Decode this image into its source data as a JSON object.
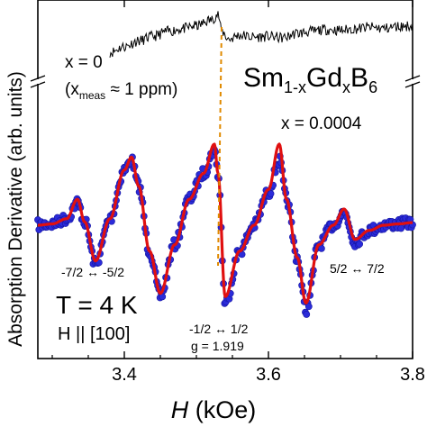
{
  "chart_data": {
    "type": "scatter",
    "xlabel_var": "H",
    "xlabel_unit": "(kOe)",
    "ylabel": "Absorption Derivative (arb. units)",
    "xlim": [
      3.28,
      3.8
    ],
    "x_ticks": [
      "3.4",
      "3.6",
      "3.8"
    ],
    "x_tick_values": [
      3.4,
      3.6,
      3.8
    ],
    "title_formula": {
      "base": "Sm",
      "sub1": "1-x",
      "mid": "Gd",
      "sub2": "x",
      "end": "B",
      "sub3": "6"
    },
    "upper_trace": {
      "label": "x = 0",
      "note": "(x",
      "note_sub": "meas",
      "note_rest": " ≈ 1 ppm)"
    },
    "lower_trace": {
      "label": "x = 0.0004"
    },
    "annotations": {
      "t1": "-7/2 ↔ -5/2",
      "t2": "-1/2 ↔ 1/2",
      "g": "g = 1.919",
      "t3": "5/2 ↔ 7/2",
      "temperature": "T = 4 K",
      "field": "H || [100]"
    },
    "marker_field": 3.535,
    "series": [
      {
        "name": "data",
        "style": "blue circles",
        "x": [
          3.28,
          3.3,
          3.32,
          3.335,
          3.345,
          3.36,
          3.38,
          3.4,
          3.41,
          3.42,
          3.435,
          3.45,
          3.47,
          3.49,
          3.51,
          3.525,
          3.53,
          3.54,
          3.56,
          3.58,
          3.6,
          3.615,
          3.625,
          3.64,
          3.652,
          3.67,
          3.69,
          3.705,
          3.72,
          3.74,
          3.76,
          3.78,
          3.8
        ],
        "y": [
          0.0,
          0.02,
          0.1,
          0.35,
          0.05,
          -0.6,
          0.1,
          0.85,
          1.0,
          0.6,
          -0.4,
          -1.1,
          -0.3,
          0.4,
          0.8,
          1.15,
          0.8,
          -1.2,
          -0.4,
          0.0,
          0.5,
          1.0,
          0.4,
          -0.5,
          -1.3,
          -0.3,
          0.0,
          0.2,
          -0.25,
          -0.08,
          0.0,
          0.02,
          0.04
        ]
      },
      {
        "name": "fit",
        "style": "red line",
        "x": [
          3.28,
          3.3,
          3.32,
          3.335,
          3.345,
          3.36,
          3.38,
          3.4,
          3.41,
          3.42,
          3.435,
          3.45,
          3.47,
          3.49,
          3.51,
          3.525,
          3.53,
          3.54,
          3.56,
          3.58,
          3.6,
          3.615,
          3.625,
          3.64,
          3.652,
          3.67,
          3.69,
          3.705,
          3.72,
          3.74,
          3.76,
          3.78,
          3.8
        ],
        "y": [
          0.0,
          0.02,
          0.1,
          0.4,
          0.05,
          -0.55,
          0.1,
          0.85,
          1.05,
          0.6,
          -0.4,
          -1.05,
          -0.3,
          0.4,
          0.8,
          1.25,
          0.8,
          -1.1,
          -0.4,
          0.0,
          0.55,
          1.25,
          0.4,
          -0.5,
          -1.2,
          -0.3,
          0.0,
          0.25,
          -0.22,
          -0.08,
          0.0,
          0.02,
          0.04
        ]
      }
    ],
    "upper_series": {
      "x": [
        3.38,
        3.4,
        3.42,
        3.44,
        3.46,
        3.48,
        3.5,
        3.52,
        3.53,
        3.535,
        3.545,
        3.56,
        3.58,
        3.6,
        3.62,
        3.64,
        3.66,
        3.68,
        3.7,
        3.72,
        3.74,
        3.76,
        3.78,
        3.8
      ],
      "y": [
        0.0,
        0.15,
        0.3,
        0.42,
        0.55,
        0.62,
        0.7,
        0.85,
        1.0,
        0.55,
        0.35,
        0.45,
        0.4,
        0.42,
        0.38,
        0.5,
        0.55,
        0.6,
        0.58,
        0.62,
        0.66,
        0.63,
        0.68,
        0.7
      ]
    }
  }
}
